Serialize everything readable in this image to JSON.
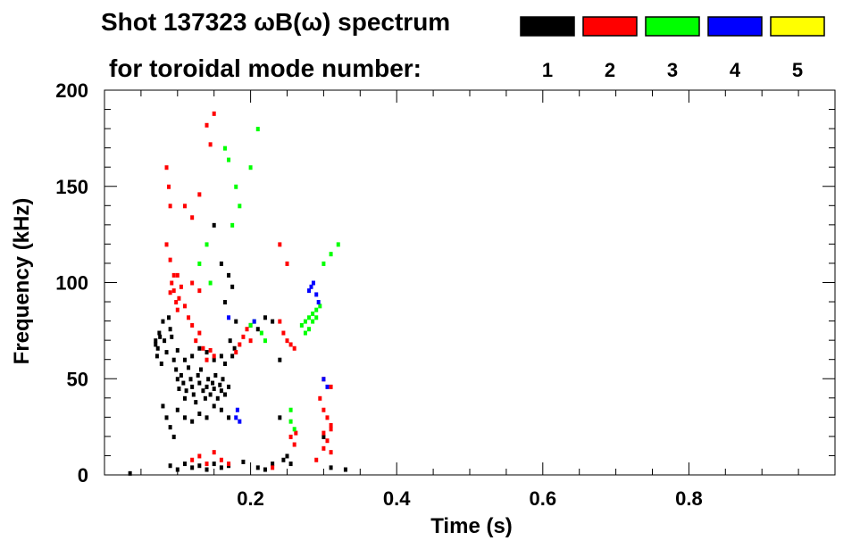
{
  "chart_data": {
    "type": "scatter",
    "title": "Shot 137323 ωB(ω) spectrum",
    "subtitle": "for toroidal mode number:",
    "xlabel": "Time (s)",
    "ylabel": "Frequency (kHz)",
    "xlim": [
      0.0,
      1.0
    ],
    "ylim": [
      0,
      200
    ],
    "xticks": [
      0.2,
      0.4,
      0.6,
      0.8
    ],
    "xtick_labels": [
      "0.2",
      "0.4",
      "0.6",
      "0.8"
    ],
    "yticks": [
      0,
      50,
      100,
      150,
      200
    ],
    "ytick_labels": [
      "0",
      "50",
      "100",
      "150",
      "200"
    ],
    "legend_position": "top-right",
    "legend": [
      {
        "label": "1",
        "color": "#000000"
      },
      {
        "label": "2",
        "color": "#ff0000"
      },
      {
        "label": "3",
        "color": "#00ff00"
      },
      {
        "label": "4",
        "color": "#0000ff"
      },
      {
        "label": "5",
        "color": "#ffff00"
      }
    ],
    "series": [
      {
        "name": "1",
        "color": "#000000",
        "points": [
          [
            0.07,
            68
          ],
          [
            0.072,
            62
          ],
          [
            0.075,
            74
          ],
          [
            0.078,
            58
          ],
          [
            0.08,
            80
          ],
          [
            0.082,
            70
          ],
          [
            0.085,
            64
          ],
          [
            0.088,
            82
          ],
          [
            0.09,
            76
          ],
          [
            0.092,
            72
          ],
          [
            0.095,
            60
          ],
          [
            0.098,
            55
          ],
          [
            0.1,
            50
          ],
          [
            0.102,
            45
          ],
          [
            0.105,
            52
          ],
          [
            0.108,
            48
          ],
          [
            0.11,
            40
          ],
          [
            0.112,
            44
          ],
          [
            0.115,
            56
          ],
          [
            0.118,
            50
          ],
          [
            0.12,
            46
          ],
          [
            0.122,
            42
          ],
          [
            0.125,
            38
          ],
          [
            0.128,
            52
          ],
          [
            0.13,
            48
          ],
          [
            0.132,
            55
          ],
          [
            0.135,
            44
          ],
          [
            0.138,
            40
          ],
          [
            0.14,
            46
          ],
          [
            0.142,
            50
          ],
          [
            0.145,
            42
          ],
          [
            0.148,
            48
          ],
          [
            0.15,
            45
          ],
          [
            0.152,
            52
          ],
          [
            0.155,
            40
          ],
          [
            0.158,
            47
          ],
          [
            0.16,
            44
          ],
          [
            0.162,
            50
          ],
          [
            0.165,
            42
          ],
          [
            0.17,
            46
          ],
          [
            0.172,
            70
          ],
          [
            0.175,
            62
          ],
          [
            0.178,
            66
          ],
          [
            0.08,
            36
          ],
          [
            0.085,
            30
          ],
          [
            0.09,
            25
          ],
          [
            0.095,
            20
          ],
          [
            0.1,
            34
          ],
          [
            0.11,
            30
          ],
          [
            0.12,
            28
          ],
          [
            0.13,
            32
          ],
          [
            0.14,
            30
          ],
          [
            0.15,
            36
          ],
          [
            0.16,
            34
          ],
          [
            0.17,
            30
          ],
          [
            0.1,
            65
          ],
          [
            0.11,
            60
          ],
          [
            0.12,
            62
          ],
          [
            0.13,
            66
          ],
          [
            0.14,
            64
          ],
          [
            0.15,
            60
          ],
          [
            0.16,
            62
          ],
          [
            0.165,
            58
          ],
          [
            0.18,
            80
          ],
          [
            0.2,
            78
          ],
          [
            0.21,
            76
          ],
          [
            0.22,
            82
          ],
          [
            0.23,
            80
          ],
          [
            0.24,
            60
          ],
          [
            0.24,
            30
          ],
          [
            0.245,
            8
          ],
          [
            0.25,
            10
          ],
          [
            0.255,
            6
          ],
          [
            0.09,
            5
          ],
          [
            0.1,
            3
          ],
          [
            0.11,
            6
          ],
          [
            0.12,
            4
          ],
          [
            0.13,
            5
          ],
          [
            0.14,
            3
          ],
          [
            0.15,
            6
          ],
          [
            0.16,
            4
          ],
          [
            0.17,
            5
          ],
          [
            0.19,
            7
          ],
          [
            0.21,
            4
          ],
          [
            0.22,
            3
          ],
          [
            0.23,
            6
          ],
          [
            0.3,
            20
          ],
          [
            0.31,
            4
          ],
          [
            0.33,
            3
          ],
          [
            0.035,
            1
          ],
          [
            0.15,
            130
          ],
          [
            0.16,
            110
          ],
          [
            0.17,
            104
          ],
          [
            0.165,
            90
          ],
          [
            0.175,
            98
          ],
          [
            0.07,
            70
          ],
          [
            0.073,
            66
          ],
          [
            0.076,
            72
          ]
        ]
      },
      {
        "name": "2",
        "color": "#ff0000",
        "points": [
          [
            0.085,
            160
          ],
          [
            0.088,
            150
          ],
          [
            0.09,
            140
          ],
          [
            0.092,
            100
          ],
          [
            0.095,
            96
          ],
          [
            0.098,
            90
          ],
          [
            0.1,
            86
          ],
          [
            0.102,
            92
          ],
          [
            0.085,
            120
          ],
          [
            0.09,
            112
          ],
          [
            0.095,
            104
          ],
          [
            0.11,
            88
          ],
          [
            0.115,
            82
          ],
          [
            0.12,
            78
          ],
          [
            0.125,
            70
          ],
          [
            0.13,
            74
          ],
          [
            0.135,
            66
          ],
          [
            0.14,
            60
          ],
          [
            0.145,
            65
          ],
          [
            0.15,
            62
          ],
          [
            0.18,
            64
          ],
          [
            0.185,
            68
          ],
          [
            0.19,
            72
          ],
          [
            0.195,
            76
          ],
          [
            0.2,
            70
          ],
          [
            0.24,
            80
          ],
          [
            0.245,
            74
          ],
          [
            0.25,
            70
          ],
          [
            0.255,
            68
          ],
          [
            0.26,
            66
          ],
          [
            0.295,
            40
          ],
          [
            0.3,
            34
          ],
          [
            0.305,
            30
          ],
          [
            0.31,
            26
          ],
          [
            0.3,
            22
          ],
          [
            0.305,
            18
          ],
          [
            0.31,
            24
          ],
          [
            0.255,
            20
          ],
          [
            0.26,
            16
          ],
          [
            0.262,
            22
          ],
          [
            0.12,
            8
          ],
          [
            0.13,
            10
          ],
          [
            0.14,
            6
          ],
          [
            0.15,
            12
          ],
          [
            0.16,
            8
          ],
          [
            0.17,
            6
          ],
          [
            0.23,
            4
          ],
          [
            0.29,
            8
          ],
          [
            0.3,
            14
          ],
          [
            0.31,
            12
          ],
          [
            0.14,
            182
          ],
          [
            0.145,
            172
          ],
          [
            0.15,
            188
          ],
          [
            0.11,
            140
          ],
          [
            0.12,
            134
          ],
          [
            0.13,
            146
          ],
          [
            0.1,
            104
          ],
          [
            0.105,
            98
          ],
          [
            0.12,
            100
          ],
          [
            0.13,
            96
          ],
          [
            0.09,
            95
          ],
          [
            0.3,
            50
          ],
          [
            0.31,
            46
          ],
          [
            0.24,
            120
          ],
          [
            0.25,
            110
          ]
        ]
      },
      {
        "name": "3",
        "color": "#00ff00",
        "points": [
          [
            0.27,
            78
          ],
          [
            0.275,
            80
          ],
          [
            0.28,
            82
          ],
          [
            0.285,
            84
          ],
          [
            0.29,
            86
          ],
          [
            0.295,
            88
          ],
          [
            0.29,
            82
          ],
          [
            0.28,
            76
          ],
          [
            0.275,
            74
          ],
          [
            0.285,
            80
          ],
          [
            0.255,
            28
          ],
          [
            0.26,
            24
          ],
          [
            0.255,
            34
          ],
          [
            0.165,
            170
          ],
          [
            0.17,
            164
          ],
          [
            0.18,
            150
          ],
          [
            0.185,
            140
          ],
          [
            0.2,
            160
          ],
          [
            0.21,
            180
          ],
          [
            0.2,
            78
          ],
          [
            0.205,
            80
          ],
          [
            0.215,
            74
          ],
          [
            0.22,
            70
          ],
          [
            0.14,
            120
          ],
          [
            0.13,
            110
          ],
          [
            0.145,
            100
          ],
          [
            0.3,
            110
          ],
          [
            0.32,
            120
          ],
          [
            0.31,
            115
          ],
          [
            0.175,
            130
          ]
        ]
      },
      {
        "name": "4",
        "color": "#0000ff",
        "points": [
          [
            0.28,
            96
          ],
          [
            0.283,
            98
          ],
          [
            0.286,
            100
          ],
          [
            0.29,
            94
          ],
          [
            0.293,
            90
          ],
          [
            0.205,
            80
          ],
          [
            0.18,
            30
          ],
          [
            0.182,
            34
          ],
          [
            0.185,
            28
          ],
          [
            0.3,
            50
          ],
          [
            0.305,
            46
          ],
          [
            0.17,
            82
          ]
        ]
      },
      {
        "name": "5",
        "color": "#ffff00",
        "points": []
      }
    ]
  }
}
